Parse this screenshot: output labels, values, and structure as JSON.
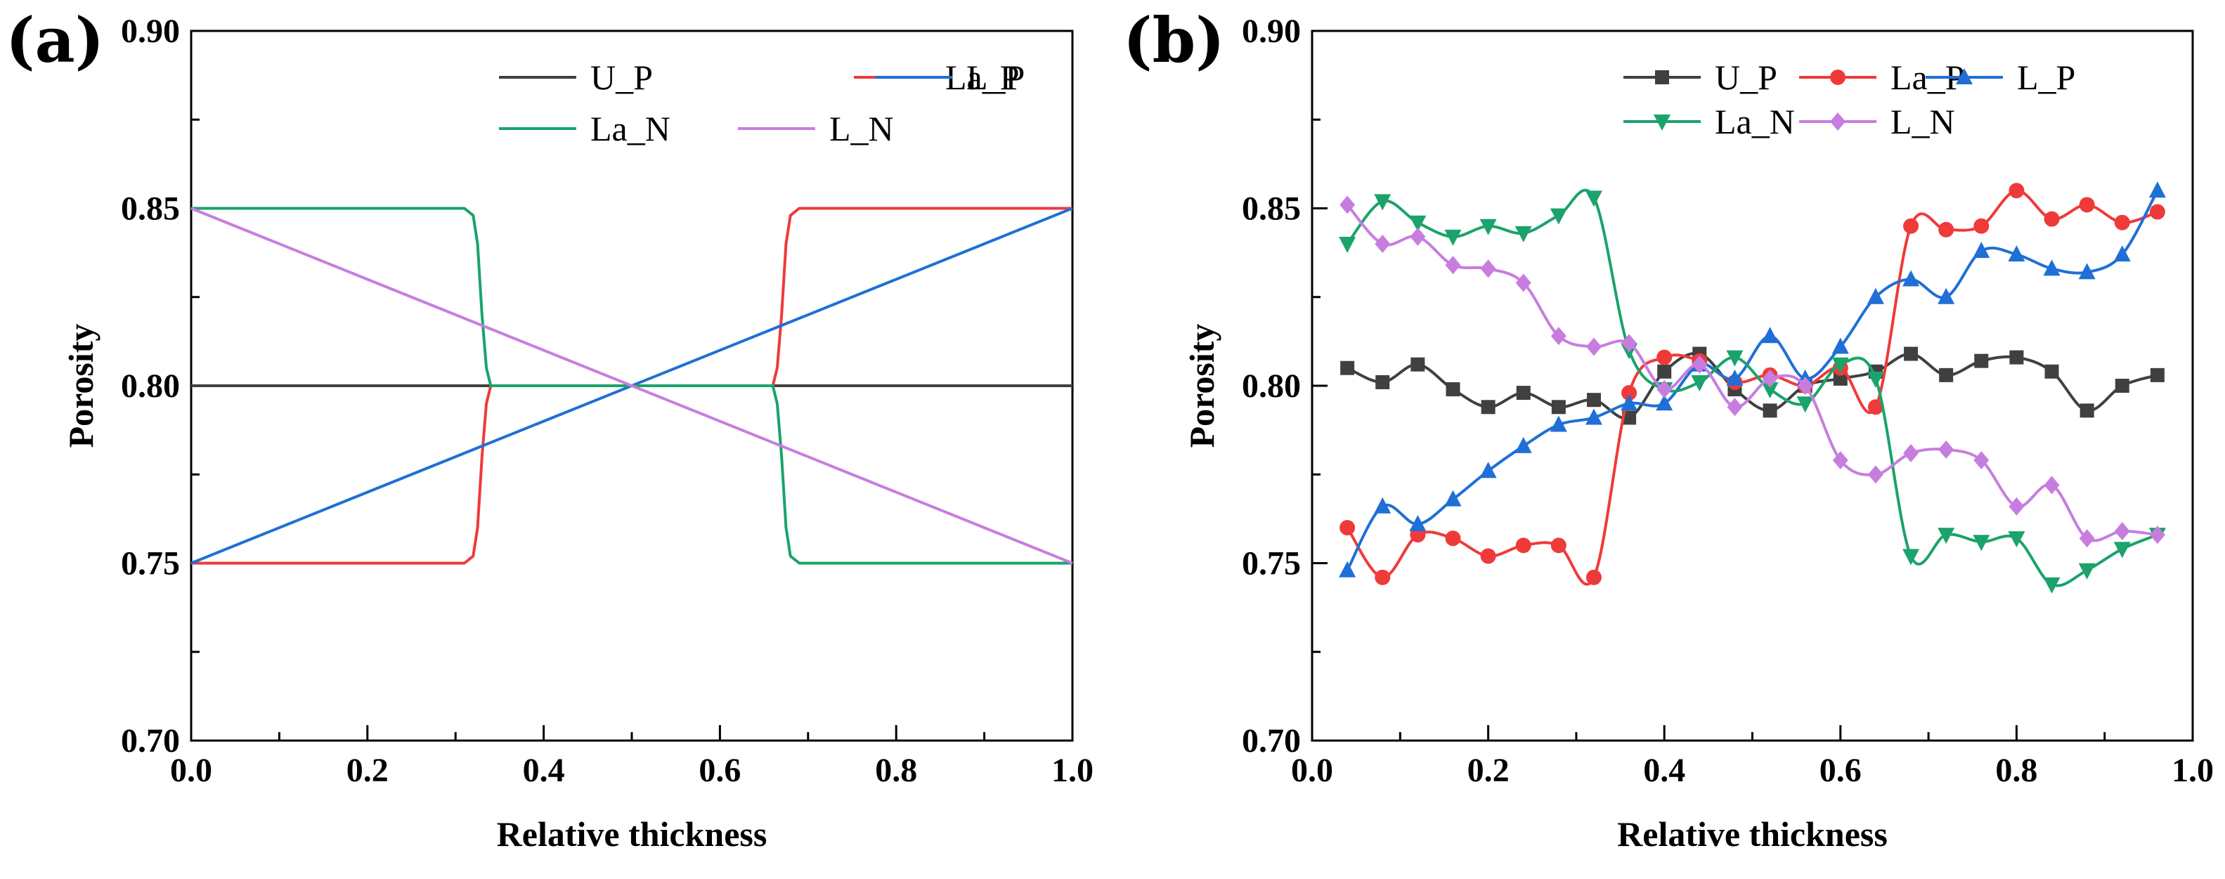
{
  "chart_data": [
    {
      "panel": "(a)",
      "type": "line",
      "xlabel": "Relative thickness",
      "ylabel": "Porosity",
      "xlim": [
        0.0,
        1.0
      ],
      "ylim": [
        0.7,
        0.9
      ],
      "xticks": [
        "0.0",
        "0.2",
        "0.4",
        "0.6",
        "0.8",
        "1.0"
      ],
      "yticks": [
        "0.70",
        "0.75",
        "0.80",
        "0.85",
        "0.90"
      ],
      "legend_position": "top-right",
      "series": [
        {
          "name": "U_P",
          "color": "#404040",
          "marker": "none",
          "x": [
            0,
            1
          ],
          "y": [
            0.8,
            0.8
          ]
        },
        {
          "name": "La_P",
          "color": "#ef3a3a",
          "marker": "none",
          "x": [
            0,
            0.31,
            0.32,
            0.325,
            0.33,
            0.335,
            0.34,
            0.66,
            0.665,
            0.67,
            0.675,
            0.68,
            0.69,
            1.0
          ],
          "y": [
            0.75,
            0.75,
            0.752,
            0.76,
            0.78,
            0.795,
            0.8,
            0.8,
            0.805,
            0.82,
            0.84,
            0.848,
            0.85,
            0.85
          ]
        },
        {
          "name": "L_P",
          "color": "#1f6fd6",
          "marker": "none",
          "x": [
            0,
            1
          ],
          "y": [
            0.75,
            0.85
          ]
        },
        {
          "name": "La_N",
          "color": "#1aa36a",
          "marker": "none",
          "x": [
            0,
            0.31,
            0.32,
            0.325,
            0.33,
            0.335,
            0.34,
            0.66,
            0.665,
            0.67,
            0.675,
            0.68,
            0.69,
            1.0
          ],
          "y": [
            0.85,
            0.85,
            0.848,
            0.84,
            0.82,
            0.805,
            0.8,
            0.8,
            0.795,
            0.78,
            0.76,
            0.752,
            0.75,
            0.75
          ]
        },
        {
          "name": "L_N",
          "color": "#c77ddf",
          "marker": "none",
          "x": [
            0,
            1
          ],
          "y": [
            0.85,
            0.75
          ]
        }
      ]
    },
    {
      "panel": "(b)",
      "type": "line",
      "xlabel": "Relative thickness",
      "ylabel": "Porosity",
      "xlim": [
        0.0,
        1.0
      ],
      "ylim": [
        0.7,
        0.9
      ],
      "xticks": [
        "0.0",
        "0.2",
        "0.4",
        "0.6",
        "0.8",
        "1.0"
      ],
      "yticks": [
        "0.70",
        "0.75",
        "0.80",
        "0.85",
        "0.90"
      ],
      "legend_position": "top-right",
      "series": [
        {
          "name": "U_P",
          "color": "#404040",
          "marker": "square",
          "x": [
            0.04,
            0.08,
            0.12,
            0.16,
            0.2,
            0.24,
            0.28,
            0.32,
            0.36,
            0.4,
            0.44,
            0.48,
            0.52,
            0.56,
            0.6,
            0.64,
            0.68,
            0.72,
            0.76,
            0.8,
            0.84,
            0.88,
            0.92,
            0.96
          ],
          "y": [
            0.805,
            0.801,
            0.806,
            0.799,
            0.794,
            0.798,
            0.794,
            0.796,
            0.791,
            0.804,
            0.809,
            0.799,
            0.793,
            0.8,
            0.802,
            0.804,
            0.809,
            0.803,
            0.807,
            0.808,
            0.804,
            0.793,
            0.8,
            0.803
          ]
        },
        {
          "name": "La_P",
          "color": "#ef3a3a",
          "marker": "circle",
          "x": [
            0.04,
            0.08,
            0.12,
            0.16,
            0.2,
            0.24,
            0.28,
            0.32,
            0.36,
            0.4,
            0.44,
            0.48,
            0.52,
            0.56,
            0.6,
            0.64,
            0.68,
            0.72,
            0.76,
            0.8,
            0.84,
            0.88,
            0.92,
            0.96
          ],
          "y": [
            0.76,
            0.746,
            0.758,
            0.757,
            0.752,
            0.755,
            0.755,
            0.746,
            0.798,
            0.808,
            0.807,
            0.801,
            0.803,
            0.8,
            0.805,
            0.794,
            0.845,
            0.844,
            0.845,
            0.855,
            0.847,
            0.851,
            0.846,
            0.849
          ]
        },
        {
          "name": "L_P",
          "color": "#1f6fd6",
          "marker": "triangle-up",
          "x": [
            0.04,
            0.08,
            0.12,
            0.16,
            0.2,
            0.24,
            0.28,
            0.32,
            0.36,
            0.4,
            0.44,
            0.48,
            0.52,
            0.56,
            0.6,
            0.64,
            0.68,
            0.72,
            0.76,
            0.8,
            0.84,
            0.88,
            0.92,
            0.96
          ],
          "y": [
            0.748,
            0.766,
            0.761,
            0.768,
            0.776,
            0.783,
            0.789,
            0.791,
            0.795,
            0.795,
            0.806,
            0.802,
            0.814,
            0.802,
            0.811,
            0.825,
            0.83,
            0.825,
            0.838,
            0.837,
            0.833,
            0.832,
            0.837,
            0.855
          ]
        },
        {
          "name": "La_N",
          "color": "#1aa36a",
          "marker": "triangle-down",
          "x": [
            0.04,
            0.08,
            0.12,
            0.16,
            0.2,
            0.24,
            0.28,
            0.32,
            0.36,
            0.4,
            0.44,
            0.48,
            0.52,
            0.56,
            0.6,
            0.64,
            0.68,
            0.72,
            0.76,
            0.8,
            0.84,
            0.88,
            0.92,
            0.96
          ],
          "y": [
            0.84,
            0.852,
            0.846,
            0.842,
            0.845,
            0.843,
            0.848,
            0.853,
            0.81,
            0.799,
            0.801,
            0.808,
            0.799,
            0.795,
            0.806,
            0.802,
            0.752,
            0.758,
            0.756,
            0.757,
            0.744,
            0.748,
            0.754,
            0.758
          ]
        },
        {
          "name": "L_N",
          "color": "#c77ddf",
          "marker": "diamond",
          "x": [
            0.04,
            0.08,
            0.12,
            0.16,
            0.2,
            0.24,
            0.28,
            0.32,
            0.36,
            0.4,
            0.44,
            0.48,
            0.52,
            0.56,
            0.6,
            0.64,
            0.68,
            0.72,
            0.76,
            0.8,
            0.84,
            0.88,
            0.92,
            0.96
          ],
          "y": [
            0.851,
            0.84,
            0.842,
            0.834,
            0.833,
            0.829,
            0.814,
            0.811,
            0.812,
            0.799,
            0.806,
            0.794,
            0.802,
            0.8,
            0.779,
            0.775,
            0.781,
            0.782,
            0.779,
            0.766,
            0.772,
            0.757,
            0.759,
            0.758
          ]
        }
      ]
    }
  ]
}
